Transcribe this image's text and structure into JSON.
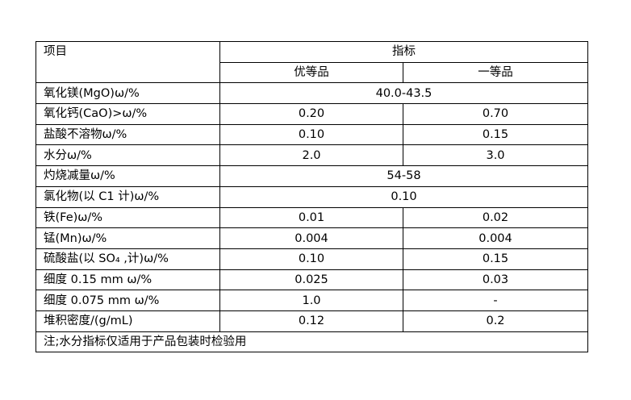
{
  "header": {
    "item": "项目",
    "indicator": "指标",
    "grade_premium": "优等品",
    "grade_first": "一等品"
  },
  "rows": [
    {
      "name": "氧化镁(MgO)ω/%",
      "merged": "40.0-43.5"
    },
    {
      "name": "氧化钙(CaO)>ω/%",
      "premium": "0.20",
      "first": "0.70"
    },
    {
      "name": "盐酸不溶物ω/%",
      "premium": "0.10",
      "first": "0.15"
    },
    {
      "name": "水分ω/%",
      "premium": "2.0",
      "first": "3.0"
    },
    {
      "name": "灼烧减量ω/%",
      "merged": "54-58"
    },
    {
      "name": "氯化物(以 C1 计)ω/%",
      "merged": "0.10"
    },
    {
      "name": "铁(Fe)ω/%",
      "premium": "0.01",
      "first": "0.02"
    },
    {
      "name": "锰(Mn)ω/%",
      "premium": "0.004",
      "first": "0.004"
    },
    {
      "name": "硫酸盐(以 SO₄  ,计)ω/%",
      "premium": "0.10",
      "first": "0.15"
    },
    {
      "name": "细度   0.15 mm ω/%",
      "premium": "0.025",
      "first": "0.03"
    },
    {
      "name": "细度   0.075 mm ω/%",
      "premium": "1.0",
      "first": "-"
    },
    {
      "name": "堆积密度/(g/mL)",
      "premium": "0.12",
      "first": "0.2"
    }
  ],
  "note": "注;水分指标仅适用于产品包装时检验用"
}
